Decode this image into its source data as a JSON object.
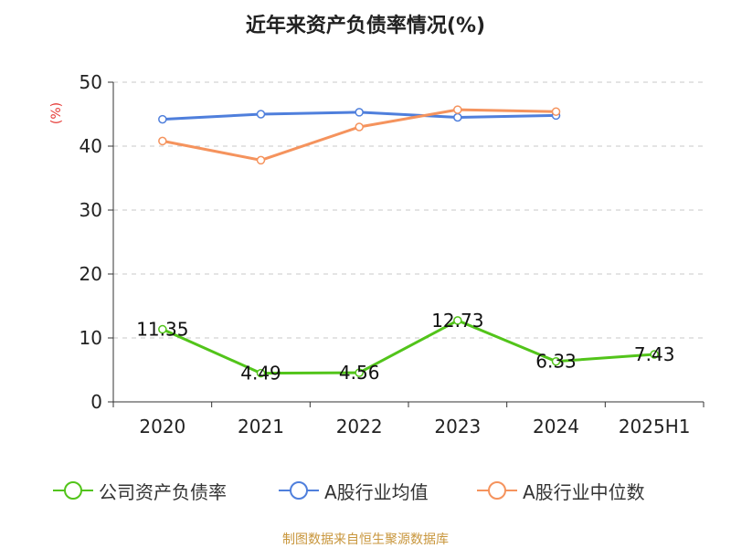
{
  "page": {
    "title": "近年来资产负债率情况(%)",
    "source": "制图数据来自恒生聚源数据库"
  },
  "chart_data": {
    "type": "line",
    "title": "近年来资产负债率情况(%)",
    "ylabel": "(%)",
    "xlabel": "",
    "categories": [
      "2020",
      "2021",
      "2022",
      "2023",
      "2024",
      "2025H1"
    ],
    "ylim": [
      0,
      50
    ],
    "yticks": [
      0,
      10,
      20,
      30,
      40,
      50
    ],
    "grid": true,
    "legend_position": "bottom",
    "series": [
      {
        "name": "公司资产负债率",
        "color": "#52c41a",
        "values": [
          11.35,
          4.49,
          4.56,
          12.73,
          6.33,
          7.43
        ],
        "show_labels": true
      },
      {
        "name": "A股行业均值",
        "color": "#4f7fdc",
        "values": [
          44.2,
          45.0,
          45.3,
          44.5,
          44.8,
          null
        ],
        "show_labels": false
      },
      {
        "name": "A股行业中位数",
        "color": "#f5935d",
        "values": [
          40.8,
          37.8,
          43.0,
          45.7,
          45.4,
          null
        ],
        "show_labels": false
      }
    ]
  }
}
